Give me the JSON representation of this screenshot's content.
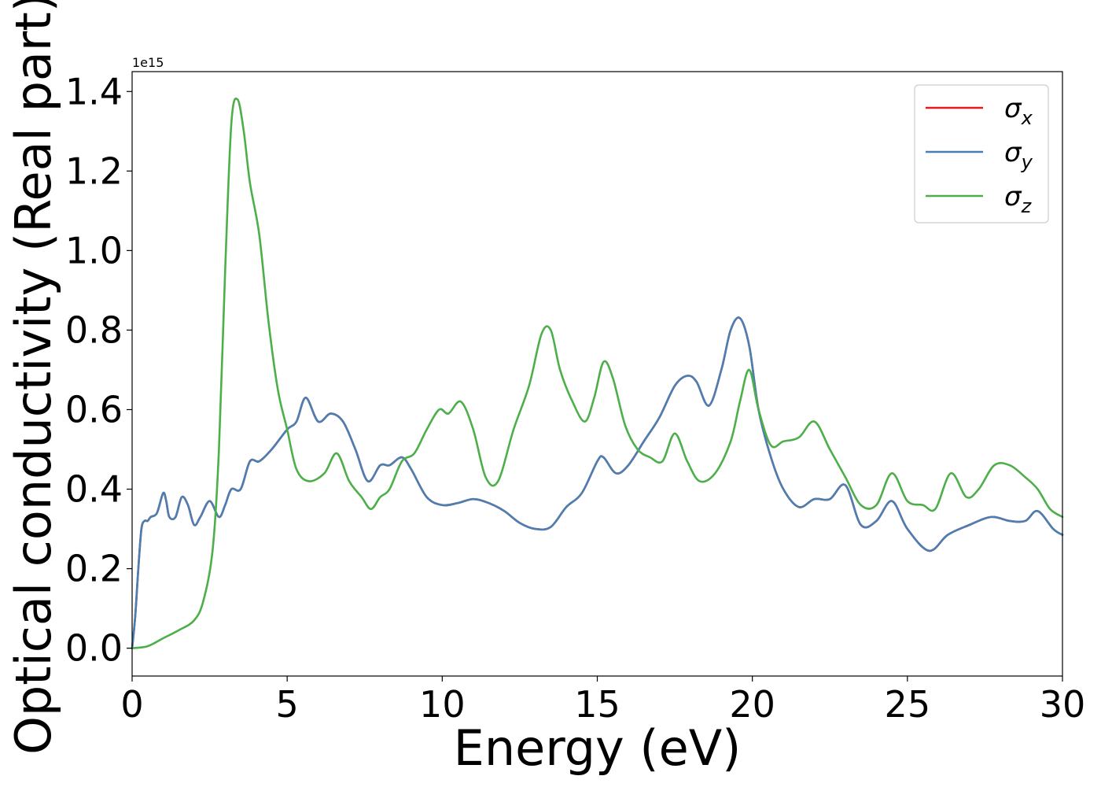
{
  "chart_data": {
    "type": "line",
    "xlabel": "Energy (eV)",
    "ylabel": "Optical conductivity (Real part)",
    "y_offset_label": "1e15",
    "xlim": [
      0,
      30
    ],
    "ylim": [
      -0.07,
      1.45
    ],
    "xticks": [
      0,
      5,
      10,
      15,
      20,
      25,
      30
    ],
    "xtick_labels": [
      "0",
      "5",
      "10",
      "15",
      "20",
      "25",
      "30"
    ],
    "yticks": [
      0.0,
      0.2,
      0.4,
      0.6,
      0.8,
      1.0,
      1.2,
      1.4
    ],
    "ytick_labels": [
      "0.0",
      "0.2",
      "0.4",
      "0.6",
      "0.8",
      "1.0",
      "1.2",
      "1.4"
    ],
    "grid": false,
    "legend_position": "top-right",
    "series": [
      {
        "name": "σx",
        "symbol": "σ",
        "subscript": "x",
        "color": "#e41a1c",
        "x": [
          0,
          0.1,
          0.2,
          0.3,
          0.4,
          0.5,
          0.6,
          0.8,
          1.0,
          1.1,
          1.2,
          1.4,
          1.6,
          1.8,
          2.0,
          2.2,
          2.5,
          2.8,
          3.0,
          3.2,
          3.5,
          3.8,
          4.1,
          4.5,
          5.0,
          5.3,
          5.6,
          6.0,
          6.4,
          6.8,
          7.2,
          7.6,
          8.0,
          8.3,
          8.7,
          9.0,
          9.5,
          10.0,
          10.5,
          11.0,
          11.5,
          12.0,
          12.5,
          13.0,
          13.5,
          14.0,
          14.5,
          15.0,
          15.2,
          15.6,
          16.0,
          16.5,
          17.0,
          17.5,
          17.9,
          18.2,
          18.6,
          19.0,
          19.3,
          19.6,
          19.9,
          20.2,
          20.6,
          21.0,
          21.5,
          22.0,
          22.5,
          23.0,
          23.5,
          24.0,
          24.5,
          25.0,
          25.7,
          26.3,
          27.0,
          27.7,
          28.3,
          28.8,
          29.2,
          29.7,
          30.0
        ],
        "y": [
          0.0,
          0.08,
          0.2,
          0.3,
          0.32,
          0.32,
          0.33,
          0.34,
          0.39,
          0.37,
          0.33,
          0.33,
          0.38,
          0.36,
          0.31,
          0.33,
          0.37,
          0.33,
          0.36,
          0.4,
          0.4,
          0.47,
          0.47,
          0.5,
          0.55,
          0.57,
          0.63,
          0.57,
          0.59,
          0.57,
          0.5,
          0.42,
          0.46,
          0.46,
          0.48,
          0.45,
          0.38,
          0.36,
          0.365,
          0.375,
          0.365,
          0.345,
          0.315,
          0.3,
          0.305,
          0.355,
          0.39,
          0.47,
          0.48,
          0.44,
          0.46,
          0.52,
          0.58,
          0.66,
          0.685,
          0.67,
          0.61,
          0.7,
          0.8,
          0.83,
          0.76,
          0.6,
          0.48,
          0.4,
          0.355,
          0.375,
          0.375,
          0.41,
          0.31,
          0.32,
          0.37,
          0.3,
          0.245,
          0.285,
          0.31,
          0.33,
          0.32,
          0.32,
          0.345,
          0.3,
          0.285
        ]
      },
      {
        "name": "σy",
        "symbol": "σ",
        "subscript": "y",
        "color": "#4a7fb4",
        "x": [
          0,
          0.1,
          0.2,
          0.3,
          0.4,
          0.5,
          0.6,
          0.8,
          1.0,
          1.1,
          1.2,
          1.4,
          1.6,
          1.8,
          2.0,
          2.2,
          2.5,
          2.8,
          3.0,
          3.2,
          3.5,
          3.8,
          4.1,
          4.5,
          5.0,
          5.3,
          5.6,
          6.0,
          6.4,
          6.8,
          7.2,
          7.6,
          8.0,
          8.3,
          8.7,
          9.0,
          9.5,
          10.0,
          10.5,
          11.0,
          11.5,
          12.0,
          12.5,
          13.0,
          13.5,
          14.0,
          14.5,
          15.0,
          15.2,
          15.6,
          16.0,
          16.5,
          17.0,
          17.5,
          17.9,
          18.2,
          18.6,
          19.0,
          19.3,
          19.6,
          19.9,
          20.2,
          20.6,
          21.0,
          21.5,
          22.0,
          22.5,
          23.0,
          23.5,
          24.0,
          24.5,
          25.0,
          25.7,
          26.3,
          27.0,
          27.7,
          28.3,
          28.8,
          29.2,
          29.7,
          30.0
        ],
        "y": [
          0.0,
          0.08,
          0.2,
          0.3,
          0.32,
          0.32,
          0.33,
          0.34,
          0.39,
          0.37,
          0.33,
          0.33,
          0.38,
          0.36,
          0.31,
          0.33,
          0.37,
          0.33,
          0.36,
          0.4,
          0.4,
          0.47,
          0.47,
          0.5,
          0.55,
          0.57,
          0.63,
          0.57,
          0.59,
          0.57,
          0.5,
          0.42,
          0.46,
          0.46,
          0.48,
          0.45,
          0.38,
          0.36,
          0.365,
          0.375,
          0.365,
          0.345,
          0.315,
          0.3,
          0.305,
          0.355,
          0.39,
          0.47,
          0.48,
          0.44,
          0.46,
          0.52,
          0.58,
          0.66,
          0.685,
          0.67,
          0.61,
          0.7,
          0.8,
          0.83,
          0.76,
          0.6,
          0.48,
          0.4,
          0.355,
          0.375,
          0.375,
          0.41,
          0.31,
          0.32,
          0.37,
          0.3,
          0.245,
          0.285,
          0.31,
          0.33,
          0.32,
          0.32,
          0.345,
          0.3,
          0.285
        ]
      },
      {
        "name": "σz",
        "symbol": "σ",
        "subscript": "z",
        "color": "#4daf4a",
        "x": [
          0,
          0.5,
          1.0,
          1.5,
          2.0,
          2.3,
          2.6,
          2.8,
          3.0,
          3.2,
          3.4,
          3.6,
          3.8,
          4.1,
          4.4,
          4.7,
          5.0,
          5.3,
          5.7,
          6.2,
          6.6,
          7.0,
          7.4,
          7.7,
          8.0,
          8.3,
          8.7,
          9.1,
          9.5,
          9.9,
          10.2,
          10.6,
          11.0,
          11.4,
          11.8,
          12.3,
          12.8,
          13.2,
          13.5,
          13.8,
          14.2,
          14.6,
          14.9,
          15.2,
          15.5,
          15.9,
          16.3,
          16.7,
          17.1,
          17.5,
          17.9,
          18.3,
          18.8,
          19.3,
          19.6,
          19.9,
          20.2,
          20.6,
          21.0,
          21.5,
          22.0,
          22.5,
          23.0,
          23.5,
          24.0,
          24.5,
          25.0,
          25.5,
          25.9,
          26.4,
          26.9,
          27.3,
          27.8,
          28.3,
          28.8,
          29.2,
          29.6,
          30.0
        ],
        "y": [
          0.0,
          0.005,
          0.025,
          0.045,
          0.07,
          0.12,
          0.25,
          0.5,
          0.95,
          1.32,
          1.38,
          1.3,
          1.17,
          1.04,
          0.82,
          0.65,
          0.55,
          0.45,
          0.42,
          0.44,
          0.49,
          0.42,
          0.38,
          0.35,
          0.38,
          0.4,
          0.47,
          0.49,
          0.55,
          0.6,
          0.59,
          0.62,
          0.55,
          0.43,
          0.42,
          0.55,
          0.66,
          0.79,
          0.8,
          0.7,
          0.62,
          0.57,
          0.63,
          0.72,
          0.68,
          0.56,
          0.5,
          0.48,
          0.47,
          0.54,
          0.47,
          0.42,
          0.44,
          0.52,
          0.62,
          0.7,
          0.6,
          0.51,
          0.52,
          0.53,
          0.57,
          0.5,
          0.43,
          0.36,
          0.36,
          0.44,
          0.37,
          0.36,
          0.35,
          0.44,
          0.38,
          0.4,
          0.46,
          0.46,
          0.43,
          0.4,
          0.35,
          0.33
        ]
      }
    ]
  }
}
